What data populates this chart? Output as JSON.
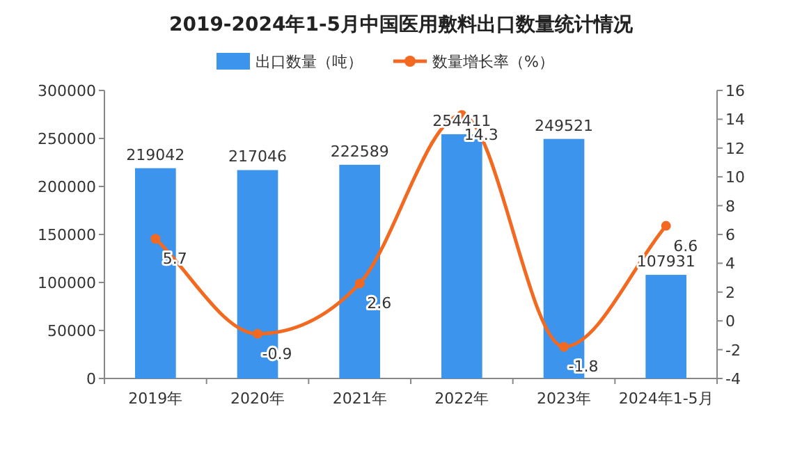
{
  "chart_data": {
    "type": "bar",
    "title": "2019-2024年1-5月中国医用敷料出口数量统计情况",
    "categories": [
      "2019年",
      "2020年",
      "2021年",
      "2022年",
      "2023年",
      "2024年1-5月"
    ],
    "series": [
      {
        "name": "出口数量（吨）",
        "color": "#3d94ec",
        "values": [
          219042,
          217046,
          222589,
          254411,
          249521,
          107931
        ]
      },
      {
        "name": "数量增长率（%）",
        "type": "line",
        "axis": "y2",
        "color": "#f26a21",
        "marker": "circle",
        "values": [
          5.7,
          -0.9,
          2.6,
          14.3,
          -1.8,
          6.6
        ]
      }
    ],
    "ylim": [
      0,
      300000
    ],
    "yticks": [
      0,
      50000,
      100000,
      150000,
      200000,
      250000,
      300000
    ],
    "y2lim": [
      -4,
      16
    ],
    "y2ticks": [
      -4,
      -2,
      0,
      2,
      4,
      6,
      8,
      10,
      12,
      14,
      16
    ],
    "data_labels": true,
    "legend": "top",
    "grid": false
  }
}
